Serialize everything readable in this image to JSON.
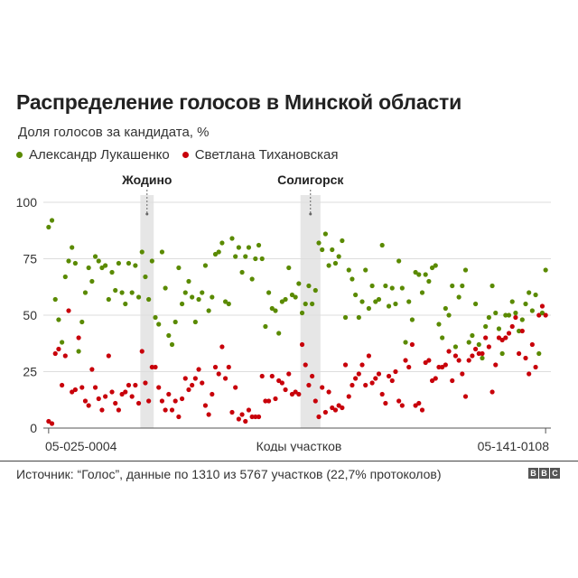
{
  "header": {
    "title": "Распределение голосов в Минской области",
    "subtitle": "Доля голосов за кандидата, %"
  },
  "source": "Источник: “Голос”, данные по 1310 из 5767 участков (22,7% протоколов)",
  "logo": "BBC",
  "chart_data": {
    "type": "scatter",
    "title": "Распределение голосов в Минской области",
    "ylabel": "Доля голосов за кандидата, %",
    "xlabel": "Коды участков",
    "x_tick_labels": [
      "05-025-0004",
      "05-141-0108"
    ],
    "y_ticks": [
      0,
      25,
      50,
      75,
      100
    ],
    "ylim": [
      0,
      100
    ],
    "x_count": 150,
    "grid": true,
    "legend_position": "top-left",
    "series": [
      {
        "name": "Александр Лукашенко",
        "color": "#5a8a00"
      },
      {
        "name": "Светлана Тихановская",
        "color": "#c8000a"
      }
    ],
    "highlights": [
      {
        "label": "Жодино",
        "x_range": [
          28,
          32
        ]
      },
      {
        "label": "Солигорск",
        "x_range": [
          76,
          82
        ]
      }
    ],
    "points": [
      [
        0,
        89,
        3
      ],
      [
        1,
        92,
        2
      ],
      [
        2,
        57,
        33
      ],
      [
        3,
        48,
        35
      ],
      [
        4,
        38,
        19
      ],
      [
        5,
        67,
        32
      ],
      [
        6,
        74,
        52
      ],
      [
        7,
        80,
        16
      ],
      [
        8,
        73,
        17
      ],
      [
        9,
        34,
        40
      ],
      [
        10,
        47,
        18
      ],
      [
        11,
        60,
        12
      ],
      [
        12,
        71,
        10
      ],
      [
        13,
        65,
        26
      ],
      [
        14,
        76,
        18
      ],
      [
        15,
        74,
        13
      ],
      [
        16,
        71,
        8
      ],
      [
        17,
        72,
        14
      ],
      [
        18,
        57,
        32
      ],
      [
        19,
        69,
        16
      ],
      [
        20,
        61,
        11
      ],
      [
        21,
        73,
        8
      ],
      [
        22,
        60,
        15
      ],
      [
        23,
        55,
        16
      ],
      [
        24,
        73,
        19
      ],
      [
        25,
        60,
        14
      ],
      [
        26,
        72,
        19
      ],
      [
        27,
        58,
        11
      ],
      [
        28,
        78,
        34
      ],
      [
        29,
        67,
        20
      ],
      [
        30,
        57,
        12
      ],
      [
        31,
        74,
        27
      ],
      [
        32,
        49,
        27
      ],
      [
        33,
        46,
        18
      ],
      [
        34,
        78,
        12
      ],
      [
        35,
        62,
        8
      ],
      [
        36,
        41,
        15
      ],
      [
        37,
        37,
        8
      ],
      [
        38,
        47,
        12
      ],
      [
        39,
        71,
        5
      ],
      [
        40,
        55,
        13
      ],
      [
        41,
        60,
        22
      ],
      [
        42,
        65,
        17
      ],
      [
        43,
        58,
        19
      ],
      [
        44,
        47,
        22
      ],
      [
        45,
        57,
        26
      ],
      [
        46,
        60,
        20
      ],
      [
        47,
        72,
        10
      ],
      [
        48,
        52,
        6
      ],
      [
        49,
        58,
        15
      ],
      [
        50,
        77,
        27
      ],
      [
        51,
        78,
        24
      ],
      [
        52,
        82,
        36
      ],
      [
        53,
        56,
        22
      ],
      [
        54,
        55,
        27
      ],
      [
        55,
        84,
        7
      ],
      [
        56,
        76,
        18
      ],
      [
        57,
        80,
        4
      ],
      [
        58,
        69,
        6
      ],
      [
        59,
        76,
        3
      ],
      [
        60,
        80,
        8
      ],
      [
        61,
        66,
        5
      ],
      [
        62,
        75,
        5
      ],
      [
        63,
        81,
        5
      ],
      [
        64,
        75,
        23
      ],
      [
        65,
        45,
        12
      ],
      [
        66,
        60,
        12
      ],
      [
        67,
        53,
        23
      ],
      [
        68,
        52,
        13
      ],
      [
        69,
        42,
        21
      ],
      [
        70,
        56,
        20
      ],
      [
        71,
        57,
        17
      ],
      [
        72,
        71,
        24
      ],
      [
        73,
        59,
        15
      ],
      [
        74,
        58,
        16
      ],
      [
        75,
        64,
        15
      ],
      [
        76,
        51,
        37
      ],
      [
        77,
        55,
        28
      ],
      [
        78,
        63,
        19
      ],
      [
        79,
        55,
        23
      ],
      [
        80,
        61,
        12
      ],
      [
        81,
        82,
        5
      ],
      [
        82,
        79,
        18
      ],
      [
        83,
        86,
        7
      ],
      [
        84,
        72,
        16
      ],
      [
        85,
        79,
        9
      ],
      [
        86,
        73,
        8
      ],
      [
        87,
        76,
        10
      ],
      [
        88,
        83,
        9
      ],
      [
        89,
        49,
        28
      ],
      [
        90,
        70,
        14
      ],
      [
        91,
        66,
        19
      ],
      [
        92,
        59,
        22
      ],
      [
        93,
        49,
        24
      ],
      [
        94,
        56,
        28
      ],
      [
        95,
        70,
        19
      ],
      [
        96,
        53,
        32
      ],
      [
        97,
        63,
        20
      ],
      [
        98,
        56,
        22
      ],
      [
        99,
        57,
        24
      ],
      [
        100,
        81,
        15
      ],
      [
        101,
        63,
        11
      ],
      [
        102,
        54,
        23
      ],
      [
        103,
        62,
        21
      ],
      [
        104,
        55,
        25
      ],
      [
        105,
        74,
        12
      ],
      [
        106,
        62,
        10
      ],
      [
        107,
        38,
        30
      ],
      [
        108,
        56,
        27
      ],
      [
        109,
        48,
        37
      ],
      [
        110,
        69,
        10
      ],
      [
        111,
        68,
        11
      ],
      [
        112,
        60,
        8
      ],
      [
        113,
        68,
        29
      ],
      [
        114,
        65,
        30
      ],
      [
        115,
        71,
        21
      ],
      [
        116,
        72,
        22
      ],
      [
        117,
        46,
        27
      ],
      [
        118,
        40,
        27
      ],
      [
        119,
        53,
        28
      ],
      [
        120,
        50,
        34
      ],
      [
        121,
        63,
        21
      ],
      [
        122,
        36,
        32
      ],
      [
        123,
        58,
        30
      ],
      [
        124,
        63,
        24
      ],
      [
        125,
        70,
        14
      ],
      [
        126,
        38,
        30
      ],
      [
        127,
        41,
        32
      ],
      [
        128,
        55,
        35
      ],
      [
        129,
        37,
        33
      ],
      [
        130,
        31,
        33
      ],
      [
        131,
        45,
        40
      ],
      [
        132,
        49,
        36
      ],
      [
        133,
        63,
        16
      ],
      [
        134,
        51,
        28
      ],
      [
        135,
        44,
        40
      ],
      [
        136,
        33,
        39
      ],
      [
        137,
        50,
        40
      ],
      [
        138,
        50,
        42
      ],
      [
        139,
        56,
        45
      ],
      [
        140,
        51,
        49
      ],
      [
        141,
        43,
        33
      ],
      [
        142,
        48,
        43
      ],
      [
        143,
        55,
        31
      ],
      [
        144,
        60,
        24
      ],
      [
        145,
        52,
        37
      ],
      [
        146,
        59,
        27
      ],
      [
        147,
        33,
        50
      ],
      [
        148,
        51,
        54
      ],
      [
        149,
        70,
        50
      ]
    ]
  }
}
